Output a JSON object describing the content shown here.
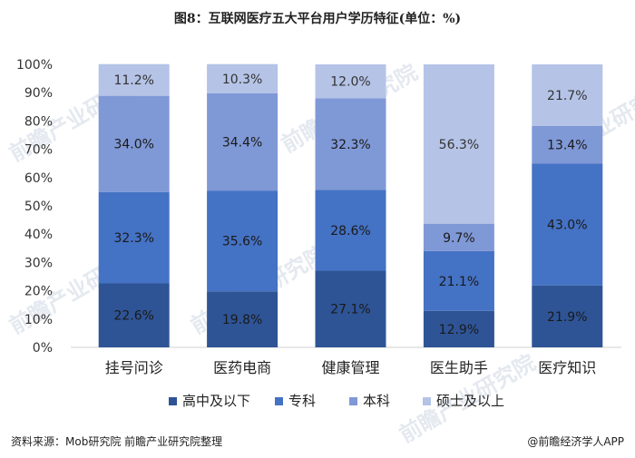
{
  "title": "图8：互联网医疗五大平台用户学历特征(单位：%)",
  "footer": {
    "source": "资料来源：Mob研究院 前瞻产业研究院整理",
    "credit": "@前瞻经济学人APP"
  },
  "watermark": "前瞻产业研究院",
  "colors": {
    "high_school": "#2e5496",
    "junior_college": "#4472c4",
    "bachelor": "#7f98d6",
    "master": "#b4c3e6"
  },
  "chart_data": {
    "type": "bar",
    "stacked": true,
    "categories": [
      "挂号问诊",
      "医药电商",
      "健康管理",
      "医生助手",
      "医疗知识"
    ],
    "series": [
      {
        "name": "高中及以下",
        "values": [
          22.6,
          19.8,
          27.1,
          12.9,
          21.9
        ],
        "labels": [
          "22.6%",
          "19.8%",
          "27.1%",
          "12.9%",
          "21.9%"
        ]
      },
      {
        "name": "专科",
        "values": [
          32.3,
          35.6,
          28.6,
          21.1,
          43.0
        ],
        "labels": [
          "32.3%",
          "35.6%",
          "28.6%",
          "21.1%",
          "43.0%"
        ]
      },
      {
        "name": "本科",
        "values": [
          34.0,
          34.4,
          32.3,
          9.7,
          13.4
        ],
        "labels": [
          "34.0%",
          "34.4%",
          "32.3%",
          "9.7%",
          "13.4%"
        ]
      },
      {
        "name": "硕士及以上",
        "values": [
          11.2,
          10.3,
          12.0,
          56.3,
          21.7
        ],
        "labels": [
          "11.2%",
          "10.3%",
          "12.0%",
          "56.3%",
          "21.7%"
        ]
      }
    ],
    "yticks": [
      "0%",
      "10%",
      "20%",
      "30%",
      "40%",
      "50%",
      "60%",
      "70%",
      "80%",
      "90%",
      "100%"
    ],
    "ylim": [
      0,
      100
    ],
    "grid": false,
    "legend_position": "bottom"
  }
}
